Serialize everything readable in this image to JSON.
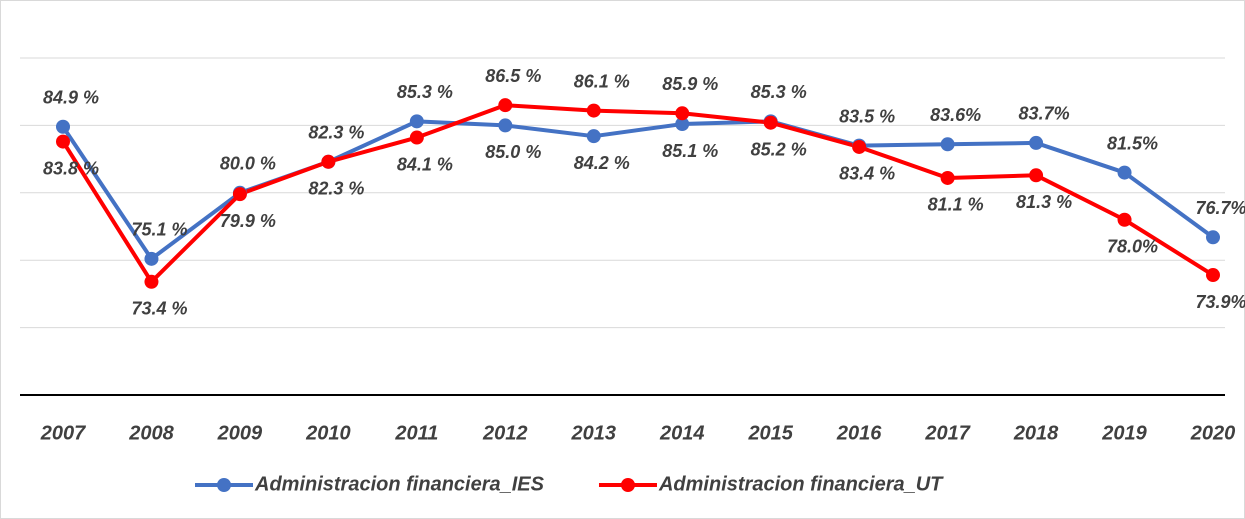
{
  "chart_data": {
    "type": "line",
    "categories": [
      "2007",
      "2008",
      "2009",
      "2010",
      "2011",
      "2012",
      "2013",
      "2014",
      "2015",
      "2016",
      "2017",
      "2018",
      "2019",
      "2020"
    ],
    "series": [
      {
        "name": "Administracion financiera_IES",
        "color": "#4472c4",
        "values": [
          84.9,
          75.1,
          80.0,
          82.3,
          85.3,
          85.0,
          84.2,
          85.1,
          85.3,
          83.5,
          83.6,
          83.7,
          81.5,
          76.7
        ],
        "value_labels": [
          "84.9 %",
          "75.1 %",
          "80.0 %",
          "82.3 %",
          "85.3 %",
          "85.0 %",
          "84.2 %",
          "85.1 %",
          "85.3 %",
          "83.5 %",
          "83.6%",
          "83.7%",
          "81.5%",
          "76.7%"
        ]
      },
      {
        "name": "Administracion financiera_UT",
        "color": "#ff0000",
        "values": [
          83.8,
          73.4,
          79.9,
          82.3,
          84.1,
          86.5,
          86.1,
          85.9,
          85.2,
          83.4,
          81.1,
          81.3,
          78.0,
          73.9
        ],
        "value_labels": [
          "83.8 %",
          "73.4 %",
          "79.9 %",
          "82.3 %",
          "84.1 %",
          "86.5 %",
          "86.1 %",
          "85.9 %",
          "85.2 %",
          "83.4 %",
          "81.1 %",
          "81.3 %",
          "78.0%",
          "73.9%"
        ]
      }
    ],
    "ylim": [
      65,
      90
    ],
    "yticks": [
      65,
      70,
      75,
      80,
      85,
      90
    ],
    "grid": true,
    "legend": "bottom"
  }
}
